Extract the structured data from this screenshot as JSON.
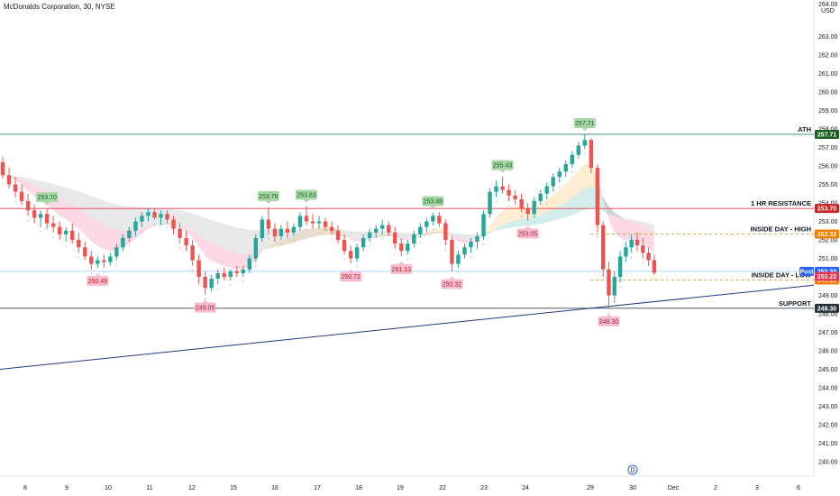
{
  "header": {
    "title": "McDonalds Corporation, 30, NYSE",
    "currency_top": "264.00",
    "currency_unit": "USD"
  },
  "colors": {
    "up": "#26a69a",
    "down": "#ef5350",
    "ath_line": "#2e7d5b",
    "resistance_line": "#e53950",
    "inside_day": "#ff9800",
    "support_line": "#37474f",
    "trendline": "#1e3a8a",
    "post_line": "#90caf9",
    "peak_bg": "#a5d6a7",
    "trough_bg": "#f8bbd0"
  },
  "chart_data": {
    "type": "candlestick",
    "title": "McDonalds Corporation, 30, NYSE",
    "ylabel": "USD",
    "ylim": [
      239.5,
      264.7
    ],
    "y_ticks": [
      "264.00",
      "263.00",
      "262.00",
      "261.00",
      "260.00",
      "259.00",
      "258.00",
      "257.00",
      "256.00",
      "255.00",
      "254.00",
      "253.00",
      "252.00",
      "251.00",
      "250.00",
      "249.00",
      "248.00",
      "247.00",
      "246.00",
      "245.00",
      "244.00",
      "243.00",
      "242.00",
      "241.00",
      "240.00"
    ],
    "x_ticks": [
      "8",
      "9",
      "10",
      "11",
      "12",
      "15",
      "16",
      "17",
      "18",
      "19",
      "22",
      "23",
      "24",
      "29",
      "30",
      "Dec",
      "2",
      "3",
      "6"
    ],
    "price_levels": [
      {
        "name": "ATH",
        "value": 257.71,
        "tag": "257.71",
        "style": "solid"
      },
      {
        "name": "1 HR RESISTANCE",
        "value": 253.7,
        "tag": "253.70",
        "style": "solid"
      },
      {
        "name": "INSIDE DAY - HIGH",
        "value": 252.32,
        "tag": "252.32",
        "style": "dashed"
      },
      {
        "name": "INSIDE DAY - LOW",
        "value": 249.83,
        "tag": "249.83",
        "style": "dashed"
      },
      {
        "name": "SUPPORT",
        "value": 248.3,
        "tag": "248.30",
        "style": "solid"
      }
    ],
    "price_tags": [
      {
        "name": "Post",
        "value": 250.3,
        "tag": "250.30"
      },
      {
        "name": "Last",
        "value": 250.22,
        "tag": "250.22"
      }
    ],
    "peak_labels": [
      "253.70",
      "253.76",
      "253.83",
      "253.48",
      "255.43",
      "257.71"
    ],
    "trough_labels": [
      "250.49",
      "249.05",
      "250.72",
      "251.13",
      "250.32",
      "253.05",
      "248.30"
    ],
    "trendline": {
      "from": {
        "x": "8",
        "y": 245.0
      },
      "to": {
        "x": "6",
        "y": 249.55
      }
    },
    "events": [
      {
        "x": "30",
        "label": "D"
      }
    ],
    "candles": [
      {
        "o": 256.2,
        "h": 256.5,
        "l": 255.3,
        "c": 255.5
      },
      {
        "o": 255.5,
        "h": 255.9,
        "l": 254.8,
        "c": 255.0
      },
      {
        "o": 255.0,
        "h": 255.4,
        "l": 254.3,
        "c": 254.6
      },
      {
        "o": 254.6,
        "h": 255.0,
        "l": 253.9,
        "c": 254.1
      },
      {
        "o": 254.1,
        "h": 254.5,
        "l": 253.3,
        "c": 253.6
      },
      {
        "o": 253.6,
        "h": 253.9,
        "l": 252.9,
        "c": 253.2
      },
      {
        "o": 253.2,
        "h": 253.6,
        "l": 252.7,
        "c": 253.4
      },
      {
        "o": 253.4,
        "h": 253.7,
        "l": 252.6,
        "c": 252.9
      },
      {
        "o": 252.9,
        "h": 253.3,
        "l": 252.4,
        "c": 252.7
      },
      {
        "o": 252.7,
        "h": 253.0,
        "l": 252.0,
        "c": 252.3
      },
      {
        "o": 252.3,
        "h": 252.7,
        "l": 251.9,
        "c": 252.5
      },
      {
        "o": 252.5,
        "h": 252.9,
        "l": 251.8,
        "c": 252.0
      },
      {
        "o": 252.0,
        "h": 252.4,
        "l": 251.3,
        "c": 251.6
      },
      {
        "o": 251.6,
        "h": 251.9,
        "l": 250.9,
        "c": 251.1
      },
      {
        "o": 251.1,
        "h": 251.4,
        "l": 250.4,
        "c": 250.7
      },
      {
        "o": 250.7,
        "h": 251.1,
        "l": 250.49,
        "c": 250.9
      },
      {
        "o": 250.9,
        "h": 251.2,
        "l": 250.5,
        "c": 250.8
      },
      {
        "o": 250.8,
        "h": 251.3,
        "l": 250.6,
        "c": 251.1
      },
      {
        "o": 251.1,
        "h": 251.8,
        "l": 250.9,
        "c": 251.6
      },
      {
        "o": 251.6,
        "h": 252.3,
        "l": 251.4,
        "c": 252.1
      },
      {
        "o": 252.1,
        "h": 252.7,
        "l": 251.9,
        "c": 252.5
      },
      {
        "o": 252.5,
        "h": 253.2,
        "l": 252.2,
        "c": 253.0
      },
      {
        "o": 253.0,
        "h": 253.5,
        "l": 252.7,
        "c": 253.3
      },
      {
        "o": 253.3,
        "h": 253.7,
        "l": 253.0,
        "c": 253.5
      },
      {
        "o": 253.5,
        "h": 253.7,
        "l": 253.1,
        "c": 253.2
      },
      {
        "o": 253.2,
        "h": 253.6,
        "l": 252.8,
        "c": 253.4
      },
      {
        "o": 253.4,
        "h": 253.6,
        "l": 252.9,
        "c": 253.1
      },
      {
        "o": 253.1,
        "h": 253.3,
        "l": 252.3,
        "c": 252.6
      },
      {
        "o": 252.6,
        "h": 252.9,
        "l": 251.8,
        "c": 252.1
      },
      {
        "o": 252.1,
        "h": 252.5,
        "l": 251.4,
        "c": 251.7
      },
      {
        "o": 251.7,
        "h": 252.0,
        "l": 250.6,
        "c": 250.9
      },
      {
        "o": 250.9,
        "h": 251.2,
        "l": 249.6,
        "c": 250.0
      },
      {
        "o": 250.0,
        "h": 250.3,
        "l": 249.05,
        "c": 249.4
      },
      {
        "o": 249.4,
        "h": 250.1,
        "l": 249.2,
        "c": 249.9
      },
      {
        "o": 249.9,
        "h": 250.4,
        "l": 249.6,
        "c": 250.2
      },
      {
        "o": 250.2,
        "h": 250.5,
        "l": 249.8,
        "c": 250.0
      },
      {
        "o": 250.0,
        "h": 250.4,
        "l": 249.8,
        "c": 250.3
      },
      {
        "o": 250.3,
        "h": 250.6,
        "l": 250.0,
        "c": 250.2
      },
      {
        "o": 250.2,
        "h": 250.6,
        "l": 250.0,
        "c": 250.4
      },
      {
        "o": 250.4,
        "h": 251.2,
        "l": 250.2,
        "c": 251.0
      },
      {
        "o": 251.0,
        "h": 252.3,
        "l": 250.8,
        "c": 252.1
      },
      {
        "o": 252.1,
        "h": 253.3,
        "l": 251.9,
        "c": 253.1
      },
      {
        "o": 253.1,
        "h": 253.76,
        "l": 252.3,
        "c": 252.6
      },
      {
        "o": 252.6,
        "h": 252.9,
        "l": 251.9,
        "c": 252.2
      },
      {
        "o": 252.2,
        "h": 252.8,
        "l": 252.0,
        "c": 252.6
      },
      {
        "o": 252.6,
        "h": 253.0,
        "l": 252.1,
        "c": 252.4
      },
      {
        "o": 252.4,
        "h": 252.9,
        "l": 252.2,
        "c": 252.7
      },
      {
        "o": 252.7,
        "h": 253.5,
        "l": 252.5,
        "c": 253.3
      },
      {
        "o": 253.3,
        "h": 253.83,
        "l": 252.8,
        "c": 253.0
      },
      {
        "o": 253.0,
        "h": 253.4,
        "l": 252.6,
        "c": 252.9
      },
      {
        "o": 252.9,
        "h": 253.3,
        "l": 252.6,
        "c": 253.0
      },
      {
        "o": 253.0,
        "h": 253.2,
        "l": 252.5,
        "c": 252.7
      },
      {
        "o": 252.7,
        "h": 253.0,
        "l": 252.3,
        "c": 252.5
      },
      {
        "o": 252.5,
        "h": 252.8,
        "l": 251.8,
        "c": 252.0
      },
      {
        "o": 252.0,
        "h": 252.3,
        "l": 251.2,
        "c": 251.4
      },
      {
        "o": 251.4,
        "h": 251.7,
        "l": 250.72,
        "c": 251.0
      },
      {
        "o": 251.0,
        "h": 251.8,
        "l": 250.8,
        "c": 251.6
      },
      {
        "o": 251.6,
        "h": 252.3,
        "l": 251.4,
        "c": 252.1
      },
      {
        "o": 252.1,
        "h": 252.6,
        "l": 251.9,
        "c": 252.4
      },
      {
        "o": 252.4,
        "h": 252.8,
        "l": 252.1,
        "c": 252.6
      },
      {
        "o": 252.6,
        "h": 253.1,
        "l": 252.3,
        "c": 252.8
      },
      {
        "o": 252.8,
        "h": 253.0,
        "l": 252.2,
        "c": 252.4
      },
      {
        "o": 252.4,
        "h": 252.7,
        "l": 251.5,
        "c": 251.8
      },
      {
        "o": 251.8,
        "h": 252.1,
        "l": 251.13,
        "c": 251.4
      },
      {
        "o": 251.4,
        "h": 252.0,
        "l": 251.2,
        "c": 251.8
      },
      {
        "o": 251.8,
        "h": 252.5,
        "l": 251.6,
        "c": 252.3
      },
      {
        "o": 252.3,
        "h": 252.9,
        "l": 252.1,
        "c": 252.7
      },
      {
        "o": 252.7,
        "h": 253.2,
        "l": 252.4,
        "c": 253.0
      },
      {
        "o": 253.0,
        "h": 253.48,
        "l": 252.8,
        "c": 253.3
      },
      {
        "o": 253.3,
        "h": 253.5,
        "l": 252.7,
        "c": 252.9
      },
      {
        "o": 252.9,
        "h": 253.1,
        "l": 251.7,
        "c": 252.0
      },
      {
        "o": 252.0,
        "h": 252.2,
        "l": 250.32,
        "c": 250.7
      },
      {
        "o": 250.7,
        "h": 251.4,
        "l": 250.5,
        "c": 251.2
      },
      {
        "o": 251.2,
        "h": 251.8,
        "l": 251.0,
        "c": 251.6
      },
      {
        "o": 251.6,
        "h": 252.1,
        "l": 251.3,
        "c": 251.9
      },
      {
        "o": 251.9,
        "h": 252.4,
        "l": 251.5,
        "c": 252.2
      },
      {
        "o": 252.2,
        "h": 253.6,
        "l": 252.0,
        "c": 253.4
      },
      {
        "o": 253.4,
        "h": 254.8,
        "l": 253.2,
        "c": 254.6
      },
      {
        "o": 254.6,
        "h": 255.2,
        "l": 254.3,
        "c": 254.9
      },
      {
        "o": 254.9,
        "h": 255.43,
        "l": 254.5,
        "c": 254.7
      },
      {
        "o": 254.7,
        "h": 255.0,
        "l": 254.1,
        "c": 254.4
      },
      {
        "o": 254.4,
        "h": 254.7,
        "l": 253.9,
        "c": 254.2
      },
      {
        "o": 254.2,
        "h": 254.5,
        "l": 253.5,
        "c": 253.7
      },
      {
        "o": 253.7,
        "h": 254.0,
        "l": 253.05,
        "c": 253.4
      },
      {
        "o": 253.4,
        "h": 254.3,
        "l": 253.2,
        "c": 254.1
      },
      {
        "o": 254.1,
        "h": 254.7,
        "l": 253.9,
        "c": 254.5
      },
      {
        "o": 254.5,
        "h": 255.1,
        "l": 254.2,
        "c": 254.9
      },
      {
        "o": 254.9,
        "h": 255.6,
        "l": 254.6,
        "c": 255.4
      },
      {
        "o": 255.4,
        "h": 255.9,
        "l": 255.1,
        "c": 255.7
      },
      {
        "o": 255.7,
        "h": 256.3,
        "l": 255.4,
        "c": 256.1
      },
      {
        "o": 256.1,
        "h": 256.8,
        "l": 255.9,
        "c": 256.6
      },
      {
        "o": 256.6,
        "h": 257.3,
        "l": 256.4,
        "c": 257.1
      },
      {
        "o": 257.1,
        "h": 257.71,
        "l": 256.9,
        "c": 257.4
      },
      {
        "o": 257.4,
        "h": 257.5,
        "l": 255.6,
        "c": 255.9
      },
      {
        "o": 255.9,
        "h": 256.1,
        "l": 252.4,
        "c": 252.8
      },
      {
        "o": 252.8,
        "h": 253.0,
        "l": 250.0,
        "c": 250.4
      },
      {
        "o": 250.4,
        "h": 250.8,
        "l": 248.3,
        "c": 249.0
      },
      {
        "o": 249.0,
        "h": 250.3,
        "l": 248.6,
        "c": 250.0
      },
      {
        "o": 250.0,
        "h": 251.4,
        "l": 249.7,
        "c": 251.1
      },
      {
        "o": 251.1,
        "h": 251.9,
        "l": 250.8,
        "c": 251.6
      },
      {
        "o": 251.6,
        "h": 252.3,
        "l": 251.3,
        "c": 252.0
      },
      {
        "o": 252.0,
        "h": 252.4,
        "l": 251.4,
        "c": 251.7
      },
      {
        "o": 251.7,
        "h": 252.1,
        "l": 251.0,
        "c": 251.3
      },
      {
        "o": 251.3,
        "h": 251.6,
        "l": 250.6,
        "c": 250.9
      },
      {
        "o": 250.9,
        "h": 251.2,
        "l": 250.1,
        "c": 250.22
      }
    ]
  }
}
